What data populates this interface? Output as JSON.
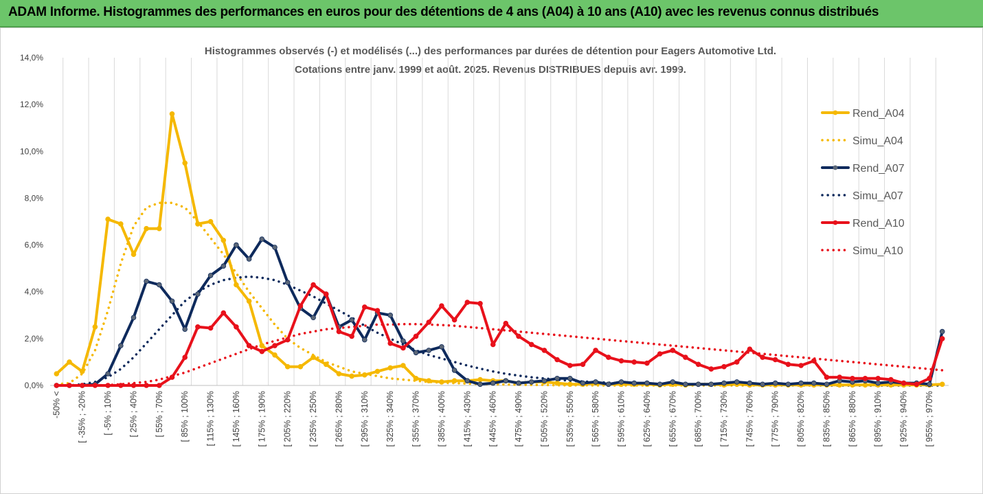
{
  "banner": {
    "title": "ADAM Informe. Histogrammes des performances en euros pour des détentions de 4 ans (A04) à 10 ans (A10) avec les revenus connus distribués"
  },
  "chart_data": {
    "type": "line",
    "title": "Histogrammes observés (-) et modélisés (...) des performances par durées de détention pour Eagers Automotive Ltd.",
    "subtitle": "Cotations entre janv. 1999 et août. 2025. Revenus DISTRIBUES depuis avr. 1999.",
    "ylim": [
      0,
      14
    ],
    "y_ticks": [
      "0,0%",
      "2,0%",
      "4,0%",
      "6,0%",
      "8,0%",
      "10,0%",
      "12,0%",
      "14,0%"
    ],
    "grid": "vertical",
    "legend_position": "right",
    "x_ticks": [
      "-50% <",
      "[ -35% ; -20%",
      "[ -5% ; 10%",
      "[ 25% ; 40%",
      "[ 55% ; 70%",
      "[ 85% ; 100%",
      "[ 115% ; 130%",
      "[ 145% ; 160%",
      "[ 175% ; 190%",
      "[ 205% ; 220%",
      "[ 235% ; 250%",
      "[ 265% ; 280%",
      "[ 295% ; 310%",
      "[ 325% ; 340%",
      "[ 355% ; 370%",
      "[ 385% ; 400%",
      "[ 415% ; 430%",
      "[ 445% ; 460%",
      "[ 475% ; 490%",
      "[ 505% ; 520%",
      "[ 535% ; 550%",
      "[ 565% ; 580%",
      "[ 595% ; 610%",
      "[ 625% ; 640%",
      "[ 655% ; 670%",
      "[ 685% ; 700%",
      "[ 715% ; 730%",
      "[ 745% ; 760%",
      "[ 775% ; 790%",
      "[ 805% ; 820%",
      "[ 835% ; 850%",
      "[ 865% ; 880%",
      "[ 895% ; 910%",
      "[ 925% ; 940%",
      "[ 955% ; 970%"
    ],
    "series": [
      {
        "name": "Rend_A04",
        "color": "#f5b800",
        "style": "solid",
        "markers": true,
        "values": [
          0.5,
          1.0,
          0.6,
          2.5,
          7.1,
          6.9,
          5.6,
          6.7,
          6.7,
          11.6,
          9.5,
          6.9,
          7.0,
          6.2,
          4.3,
          3.6,
          1.7,
          1.3,
          0.8,
          0.8,
          1.2,
          0.9,
          0.5,
          0.4,
          0.45,
          0.6,
          0.75,
          0.85,
          0.3,
          0.2,
          0.15,
          0.2,
          0.2,
          0.25,
          0.2,
          0.2,
          0.1,
          0.15,
          0.15,
          0.1,
          0.05,
          0.05,
          0.1,
          0.05,
          0.05,
          0.05,
          0.05,
          0.02,
          0.05,
          0.02,
          0.05,
          0.05,
          0.02,
          0.05,
          0.02,
          0.02,
          0.02,
          0.02,
          0.02,
          0.02,
          0.02,
          0.02,
          0.02,
          0.02,
          0.02,
          0.02,
          0.02,
          0.02,
          0.02,
          0.05
        ]
      },
      {
        "name": "Simu_A04",
        "color": "#f5b800",
        "style": "dotted",
        "markers": false,
        "values": [
          0.05,
          0.1,
          0.5,
          1.5,
          3.2,
          5.2,
          6.8,
          7.6,
          7.8,
          7.8,
          7.6,
          7.0,
          6.3,
          5.6,
          4.8,
          4.0,
          3.3,
          2.6,
          2.0,
          1.6,
          1.3,
          1.0,
          0.8,
          0.6,
          0.5,
          0.4,
          0.3,
          0.25,
          0.2,
          0.15,
          0.12,
          0.1,
          0.08,
          0.06,
          0.05,
          0.04,
          0.03,
          0.02,
          0.02,
          0.01,
          0.01,
          0.01,
          0.0,
          0.0,
          0.0,
          0.0,
          0.0,
          0.0,
          0.0,
          0.0,
          0.0,
          0.0,
          0.0,
          0.0,
          0.0,
          0.0,
          0.0,
          0.0,
          0.0,
          0.0,
          0.0,
          0.0,
          0.0,
          0.0,
          0.0,
          0.0,
          0.0,
          0.0,
          0.0,
          0.0
        ]
      },
      {
        "name": "Rend_A07",
        "color": "#0e2a5c",
        "style": "solid",
        "markers": true,
        "values": [
          0.0,
          0.0,
          0.0,
          0.05,
          0.5,
          1.7,
          2.9,
          4.45,
          4.3,
          3.6,
          2.4,
          3.9,
          4.7,
          5.1,
          6.0,
          5.4,
          6.25,
          5.9,
          4.4,
          3.3,
          2.9,
          3.9,
          2.5,
          2.8,
          1.95,
          3.1,
          3.0,
          1.9,
          1.4,
          1.5,
          1.65,
          0.65,
          0.2,
          0.05,
          0.1,
          0.2,
          0.1,
          0.15,
          0.2,
          0.3,
          0.3,
          0.1,
          0.15,
          0.05,
          0.15,
          0.1,
          0.1,
          0.05,
          0.15,
          0.05,
          0.05,
          0.05,
          0.1,
          0.15,
          0.1,
          0.05,
          0.1,
          0.05,
          0.1,
          0.1,
          0.05,
          0.2,
          0.15,
          0.2,
          0.1,
          0.15,
          0.1,
          0.1,
          0.05,
          2.3
        ]
      },
      {
        "name": "Simu_A07",
        "color": "#0e2a5c",
        "style": "dotted",
        "markers": false,
        "values": [
          0.0,
          0.0,
          0.05,
          0.15,
          0.35,
          0.7,
          1.2,
          1.8,
          2.4,
          3.0,
          3.6,
          4.0,
          4.3,
          4.5,
          4.6,
          4.65,
          4.6,
          4.5,
          4.3,
          4.05,
          3.8,
          3.5,
          3.2,
          2.9,
          2.55,
          2.25,
          2.0,
          1.75,
          1.5,
          1.3,
          1.15,
          1.0,
          0.85,
          0.72,
          0.6,
          0.5,
          0.42,
          0.35,
          0.3,
          0.25,
          0.2,
          0.17,
          0.14,
          0.12,
          0.1,
          0.08,
          0.07,
          0.06,
          0.05,
          0.04,
          0.03,
          0.03,
          0.02,
          0.02,
          0.02,
          0.01,
          0.01,
          0.01,
          0.01,
          0.01,
          0.0,
          0.0,
          0.0,
          0.0,
          0.0,
          0.0,
          0.0,
          0.0,
          0.0,
          0.0
        ]
      },
      {
        "name": "Rend_A10",
        "color": "#e8111b",
        "style": "solid",
        "markers": true,
        "values": [
          0.0,
          0.0,
          0.0,
          0.0,
          0.0,
          0.0,
          0.0,
          0.0,
          0.0,
          0.35,
          1.2,
          2.5,
          2.45,
          3.1,
          2.5,
          1.7,
          1.45,
          1.7,
          1.95,
          3.4,
          4.3,
          3.9,
          2.3,
          2.1,
          3.35,
          3.2,
          1.8,
          1.6,
          2.1,
          2.7,
          3.4,
          2.8,
          3.55,
          3.5,
          1.75,
          2.65,
          2.1,
          1.75,
          1.5,
          1.1,
          0.85,
          0.9,
          1.5,
          1.2,
          1.05,
          1.0,
          0.95,
          1.35,
          1.5,
          1.2,
          0.9,
          0.7,
          0.8,
          1.0,
          1.55,
          1.2,
          1.1,
          0.9,
          0.85,
          1.05,
          0.35,
          0.35,
          0.3,
          0.3,
          0.3,
          0.25,
          0.1,
          0.05,
          0.3,
          2.0
        ]
      },
      {
        "name": "Simu_A10",
        "color": "#e8111b",
        "style": "dotted",
        "markers": false,
        "values": [
          0.0,
          0.0,
          0.0,
          0.0,
          0.02,
          0.05,
          0.1,
          0.15,
          0.25,
          0.4,
          0.55,
          0.75,
          0.95,
          1.15,
          1.35,
          1.55,
          1.75,
          1.9,
          2.05,
          2.2,
          2.3,
          2.4,
          2.45,
          2.5,
          2.55,
          2.6,
          2.6,
          2.62,
          2.62,
          2.6,
          2.58,
          2.55,
          2.5,
          2.45,
          2.4,
          2.35,
          2.3,
          2.25,
          2.2,
          2.15,
          2.1,
          2.05,
          2.0,
          1.95,
          1.9,
          1.85,
          1.8,
          1.75,
          1.7,
          1.65,
          1.6,
          1.55,
          1.5,
          1.45,
          1.4,
          1.35,
          1.3,
          1.25,
          1.2,
          1.15,
          1.1,
          1.05,
          1.0,
          0.95,
          0.9,
          0.85,
          0.8,
          0.75,
          0.7,
          0.65
        ]
      }
    ]
  }
}
